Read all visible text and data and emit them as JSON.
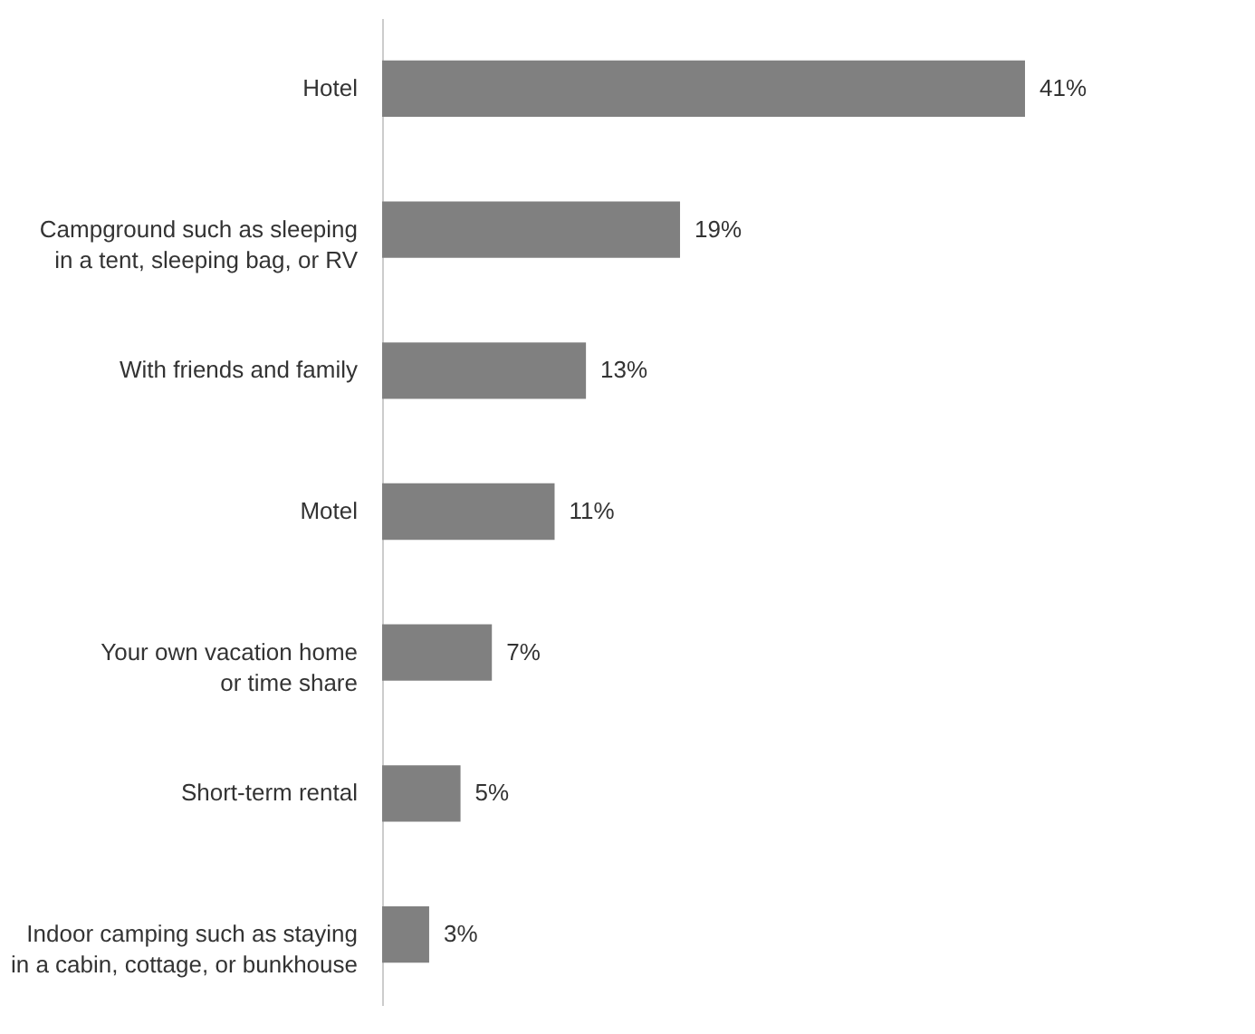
{
  "chart_data": {
    "type": "bar",
    "orientation": "horizontal",
    "categories": [
      "Hotel",
      "Campground such as sleeping\nin a tent, sleeping bag, or RV",
      "With friends and family",
      "Motel",
      "Your own vacation home\nor time share",
      "Short-term rental",
      "Indoor camping such as staying\nin a cabin, cottage, or bunkhouse"
    ],
    "values": [
      41,
      19,
      13,
      11,
      7,
      5,
      3
    ],
    "value_labels": [
      "41%",
      "19%",
      "13%",
      "11%",
      "7%",
      "5%",
      "3%"
    ],
    "color": "#808080"
  }
}
